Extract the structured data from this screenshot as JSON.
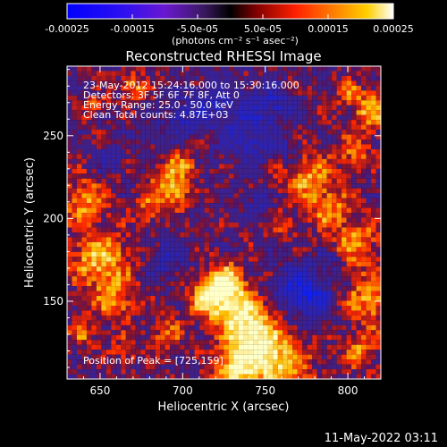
{
  "colorbar": {
    "ticks": [
      "-0.00025",
      "-0.00015",
      "-5.0e-05",
      "5.0e-05",
      "0.00015",
      "0.00025"
    ],
    "tick_values": [
      -0.00025,
      -0.00015,
      -5e-05,
      5e-05,
      0.00015,
      0.00025
    ],
    "range": [
      -0.00025,
      0.00025
    ],
    "unit_label": "(photons cm⁻² s⁻¹ asec⁻²)",
    "colors": [
      "#0000ff",
      "#5a00d8",
      "#2a1840",
      "#000000",
      "#c02000",
      "#ff6000",
      "#ffd000",
      "#ffffff"
    ]
  },
  "chart_data": {
    "type": "heatmap",
    "title": "Reconstructed RHESSI Image",
    "xlabel": "Heliocentric X (arcsec)",
    "ylabel": "Heliocentric Y (arcsec)",
    "xlim": [
      630,
      820
    ],
    "ylim": [
      103,
      292
    ],
    "xticks": [
      650,
      700,
      750,
      800
    ],
    "yticks": [
      150,
      200,
      250
    ],
    "peak": [
      725,
      159
    ],
    "annotations": [
      "23-May-2012 15:24:16.000 to 15:30:16.000",
      "Detectors: 3F 5F 6F 7F 8F, Att 0",
      "Energy Range: 25.0 - 50.0 keV",
      "Clean    Total counts: 4.87E+03"
    ],
    "peak_label": "Position of Peak = [725,159]"
  },
  "footer": {
    "date": "11-May-2022 03:11"
  }
}
